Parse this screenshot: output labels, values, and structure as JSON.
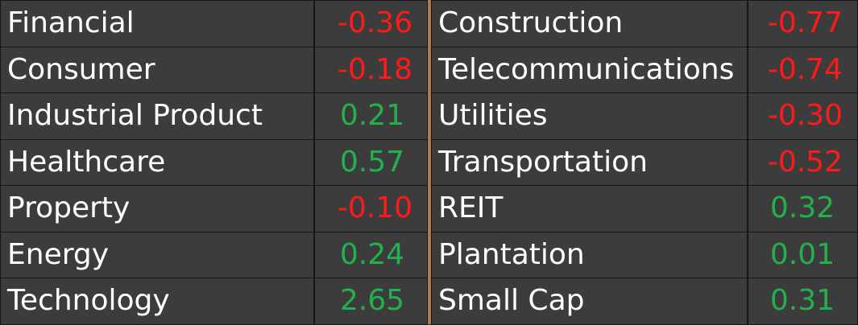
{
  "left": [
    {
      "name": "Financial",
      "value": "-0.36"
    },
    {
      "name": "Consumer",
      "value": "-0.18"
    },
    {
      "name": "Industrial Product",
      "value": "0.21"
    },
    {
      "name": "Healthcare",
      "value": "0.57"
    },
    {
      "name": "Property",
      "value": "-0.10"
    },
    {
      "name": "Energy",
      "value": "0.24"
    },
    {
      "name": "Technology",
      "value": "2.65"
    }
  ],
  "right": [
    {
      "name": "Construction",
      "value": "-0.77"
    },
    {
      "name": "Telecommunications",
      "value": "-0.74"
    },
    {
      "name": "Utilities",
      "value": "-0.30"
    },
    {
      "name": "Transportation",
      "value": "-0.52"
    },
    {
      "name": "REIT",
      "value": "0.32"
    },
    {
      "name": "Plantation",
      "value": "0.01"
    },
    {
      "name": "Small Cap",
      "value": "0.31"
    }
  ]
}
